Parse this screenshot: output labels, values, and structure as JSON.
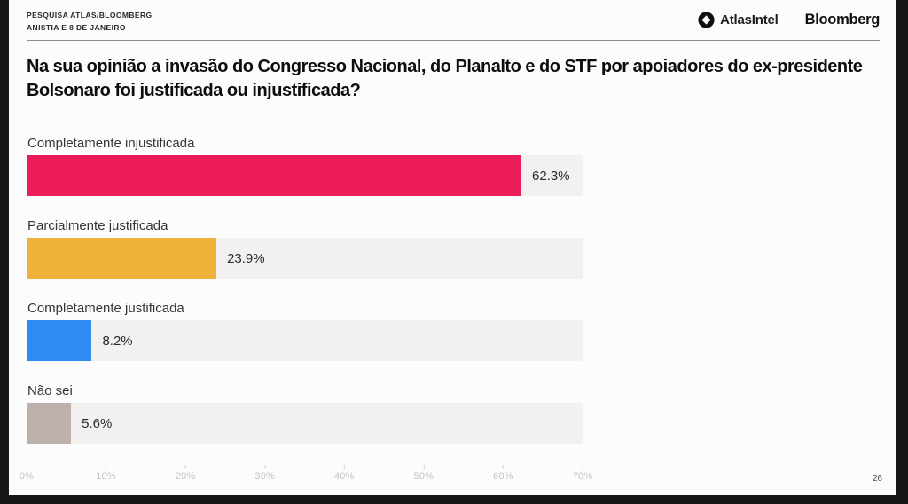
{
  "header": {
    "meta_line1": "PESQUISA ATLAS/BLOOMBERG",
    "meta_line2": "ANISTIA E 8 DE JANEIRO",
    "brand_atlas": "AtlasIntel",
    "brand_bloomberg": "Bloomberg"
  },
  "title": "Na sua opinião a invasão do Congresso Nacional, do Planalto e do STF por apoiadores do ex-presidente Bolsonaro foi justificada ou injustificada?",
  "page_number": "26",
  "colors": {
    "frame": "#171717",
    "page_background": "#fcfcfc",
    "track": "#f2f1ef",
    "tick_text": "#c3c3c8"
  },
  "chart_data": {
    "type": "bar",
    "orientation": "horizontal",
    "title": "Na sua opinião a invasão do Congresso Nacional, do Planalto e do STF por apoiadores do ex-presidente Bolsonaro foi justificada ou injustificada?",
    "categories": [
      "Completamente injustificada",
      "Parcialmente justificada",
      "Completamente justificada",
      "Não sei"
    ],
    "values": [
      62.3,
      23.9,
      8.2,
      5.6
    ],
    "value_labels": [
      "62.3%",
      "23.9%",
      "8.2%",
      "5.6%"
    ],
    "bar_colors": [
      "#ec1c5b",
      "#f1b23b",
      "#2e8bf2",
      "#beb1ab"
    ],
    "track_color": "#f2f1ef",
    "xlim": [
      0,
      70
    ],
    "x_ticks": [
      "0%",
      "10%",
      "20%",
      "30%",
      "40%",
      "50%",
      "60%",
      "70%"
    ],
    "xlabel": "",
    "ylabel": "",
    "grid": false,
    "legend": "none"
  }
}
